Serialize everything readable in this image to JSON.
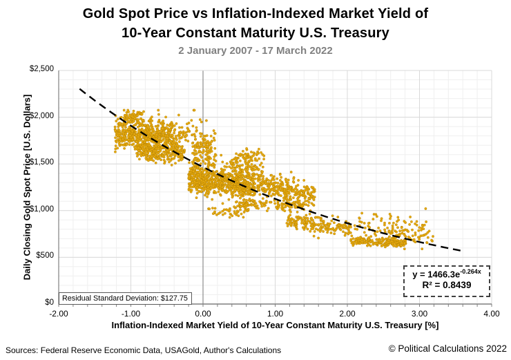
{
  "header": {
    "title_line1": "Gold Spot Price vs Inflation-Indexed Market Yield of",
    "title_line2": "10-Year Constant Maturity U.S. Treasury",
    "subtitle": "2 January 2007 - 17 March 2022"
  },
  "chart_data": {
    "type": "scatter",
    "title": "Gold Spot Price vs Inflation-Indexed Market Yield of 10-Year Constant Maturity U.S. Treasury",
    "subtitle": "2 January 2007 - 17 March 2022",
    "xlabel": "Inflation-Indexed Market Yield of 10-Year Constant Maturity U.S. Treasury [%]",
    "ylabel": "Daily Closing Gold Spot Price [U.S. Dollars]",
    "xlim": [
      -2.0,
      4.0
    ],
    "ylim": [
      0,
      2500
    ],
    "x_minor_step": 0.2,
    "y_minor_step": 100,
    "grid": "on",
    "legend": "none",
    "x_ticks": [
      {
        "label": "-2.00",
        "v": -2
      },
      {
        "label": "-1.00",
        "v": -1
      },
      {
        "label": "0.00",
        "v": 0
      },
      {
        "label": "1.00",
        "v": 1
      },
      {
        "label": "2.00",
        "v": 2
      },
      {
        "label": "3.00",
        "v": 3
      },
      {
        "label": "4.00",
        "v": 4
      }
    ],
    "y_ticks": [
      {
        "label": "$0",
        "v": 0
      },
      {
        "label": "$500",
        "v": 500
      },
      {
        "label": "$1,000",
        "v": 1000
      },
      {
        "label": "$1,500",
        "v": 1500
      },
      {
        "label": "$2,000",
        "v": 2000
      },
      {
        "label": "$2,500",
        "v": 2500
      }
    ],
    "point_color": "#E6A90F",
    "point_edge_color": "#B07F00",
    "minor_grid_color": "#EFEFEF",
    "major_grid_color": "#D9D9D9",
    "axis_color": "#7F7F7F",
    "zero_line_color": "#8C8C8C",
    "trendline": {
      "type": "exponential",
      "a": 1466.3,
      "b": -0.264,
      "x_start": -1.71,
      "x_end": 3.6,
      "color": "#000000",
      "eq_base": "y = 1466.3e",
      "eq_sup": "-0.264x",
      "r2_label": "R² = 0.8439",
      "r_squared": 0.8439
    },
    "residual_note": "Residual Standard Deviation: $127.75",
    "x_data_range": [
      -1.25,
      3.2
    ],
    "y_data_range": [
      590,
      2075
    ],
    "seed": 7,
    "clusters": [
      [
        -1.22,
        -0.42,
        1830,
        1790,
        80,
        520
      ],
      [
        -1.1,
        -0.82,
        1995,
        1985,
        40,
        80
      ],
      [
        -0.92,
        -0.25,
        1655,
        1615,
        55,
        270
      ],
      [
        -0.58,
        -0.15,
        1845,
        1835,
        60,
        65
      ],
      [
        -0.15,
        0.18,
        1670,
        1590,
        130,
        150
      ],
      [
        -0.2,
        0.72,
        1350,
        1250,
        70,
        650
      ],
      [
        0.25,
        0.85,
        1480,
        1430,
        55,
        100
      ],
      [
        0.45,
        0.88,
        1580,
        1560,
        45,
        60
      ],
      [
        0.7,
        1.55,
        1300,
        1140,
        60,
        290
      ],
      [
        0.45,
        1.4,
        1065,
        1050,
        30,
        130
      ],
      [
        0.05,
        0.6,
        1000,
        985,
        40,
        40
      ],
      [
        1.15,
        2.05,
        900,
        800,
        45,
        190
      ],
      [
        2.1,
        3.1,
        845,
        815,
        70,
        85
      ],
      [
        2.05,
        2.82,
        680,
        650,
        22,
        180
      ],
      [
        2.55,
        3.2,
        730,
        700,
        55,
        60
      ]
    ]
  },
  "footer": {
    "sources": "Sources: Federal Reserve Economic Data, USAGold, Author's Calculations",
    "copyright": "© Political Calculations 2022"
  }
}
